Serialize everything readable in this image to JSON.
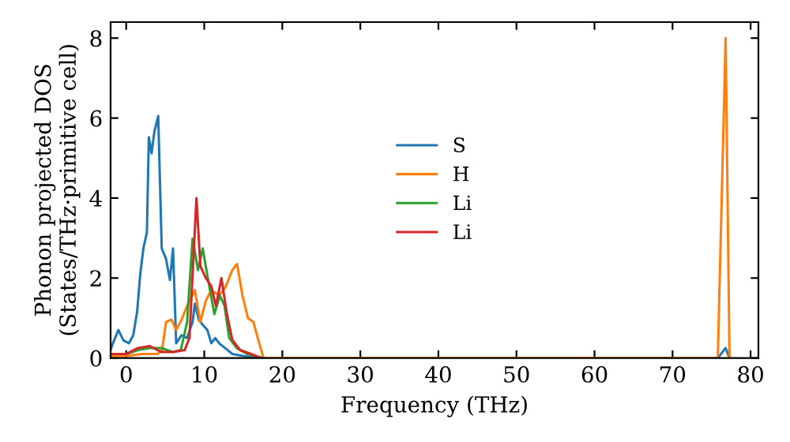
{
  "chart_data": {
    "type": "line",
    "xlabel": "Frequency (THz)",
    "ylabel": "Phonon projected DOS\n(States/THz·primitive cell)",
    "xlim": [
      -2,
      81
    ],
    "ylim": [
      0,
      8.4
    ],
    "xticks": [
      0,
      10,
      20,
      30,
      40,
      50,
      60,
      70,
      80
    ],
    "yticks": [
      0,
      2,
      4,
      6,
      8
    ],
    "legend": "center",
    "grid": false,
    "series": [
      {
        "name": "S",
        "color": "#1f77b4",
        "x": [
          -2,
          -1.7,
          -1.0,
          -0.35,
          0.35,
          0.9,
          1.4,
          1.8,
          2.2,
          2.65,
          2.9,
          3.25,
          3.6,
          4.1,
          4.55,
          5.1,
          5.6,
          6.0,
          6.4,
          7.1,
          7.8,
          8.5,
          8.8,
          9.3,
          9.8,
          10.4,
          10.9,
          11.4,
          11.9,
          12.6,
          13.6,
          15,
          16.2,
          17,
          75.8,
          76.8,
          77.3
        ],
        "values": [
          0.2,
          0.37,
          0.7,
          0.44,
          0.37,
          0.57,
          1.16,
          2.1,
          2.74,
          3.14,
          5.52,
          5.12,
          5.65,
          6.05,
          2.74,
          2.48,
          1.95,
          2.74,
          0.37,
          0.57,
          0.5,
          0.9,
          1.36,
          0.96,
          0.83,
          0.7,
          0.37,
          0.5,
          0.37,
          0.26,
          0.1,
          0.05,
          0.02,
          0,
          0,
          0.25,
          0
        ]
      },
      {
        "name": "H",
        "color": "#ff7f0e",
        "x": [
          -2,
          0,
          2,
          4,
          4.6,
          5.1,
          5.8,
          6.4,
          7.1,
          7.8,
          8.8,
          9.5,
          10.2,
          10.9,
          11.9,
          12.7,
          13.6,
          14.2,
          14.9,
          15.6,
          16.3,
          17,
          17.6,
          75.8,
          76.8,
          77.3
        ],
        "values": [
          0.05,
          0.05,
          0.1,
          0.1,
          0.2,
          0.9,
          0.96,
          0.7,
          0.96,
          1.3,
          1.7,
          0.9,
          1.43,
          1.7,
          1.56,
          1.76,
          2.2,
          2.35,
          1.56,
          1.0,
          0.9,
          0.4,
          0,
          0,
          8,
          0
        ]
      },
      {
        "name": "Li",
        "color": "#2ca02c",
        "x": [
          -2,
          0,
          1.5,
          3,
          4.5,
          6,
          7,
          7.8,
          8.5,
          9.2,
          9.8,
          10.5,
          11.3,
          12,
          12.6,
          13.2,
          14.2,
          15.5,
          16.8,
          17.5
        ],
        "values": [
          0.1,
          0.1,
          0.2,
          0.25,
          0.25,
          0.15,
          0.2,
          0.9,
          2.98,
          2.2,
          2.74,
          1.95,
          1.1,
          1.56,
          1.3,
          0.5,
          0.24,
          0.1,
          0.03,
          0
        ]
      },
      {
        "name": "Li",
        "color": "#d62728",
        "x": [
          -2,
          0,
          1.5,
          3,
          4.5,
          6,
          7.5,
          8.1,
          9.0,
          9.5,
          10.2,
          10.9,
          11.5,
          12.2,
          12.9,
          13.6,
          14.6,
          16,
          17.3
        ],
        "values": [
          0.1,
          0.1,
          0.25,
          0.3,
          0.15,
          0.15,
          0.2,
          0.5,
          4.0,
          2.3,
          2.0,
          1.8,
          1.3,
          2.0,
          1.1,
          0.45,
          0.2,
          0.1,
          0
        ]
      }
    ]
  }
}
